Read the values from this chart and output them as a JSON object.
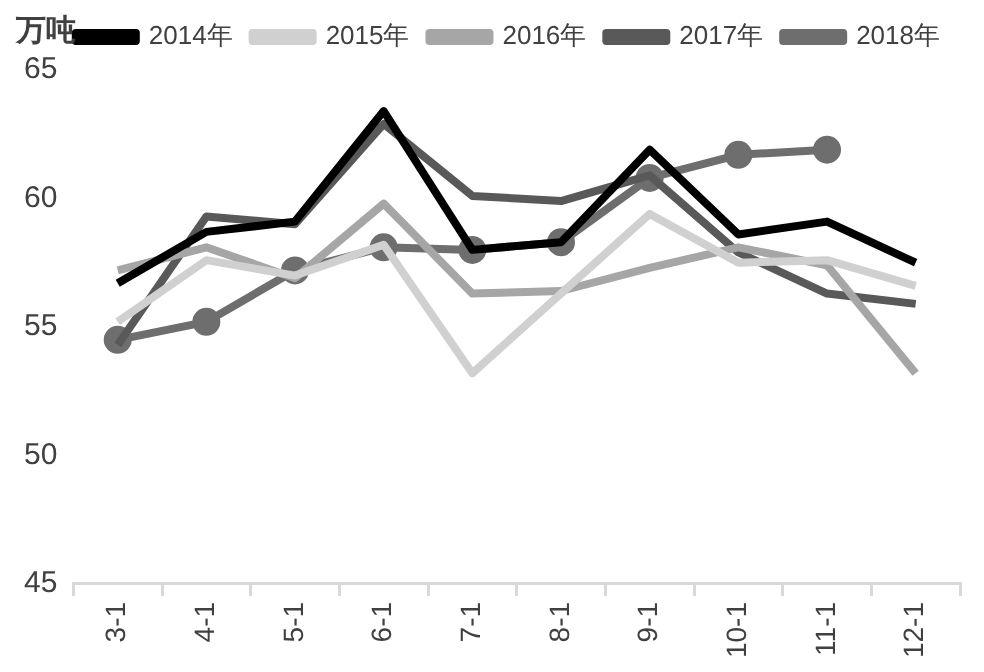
{
  "chart_data": {
    "type": "line",
    "ylabel": "万吨",
    "categories": [
      "3-1",
      "4-1",
      "5-1",
      "6-1",
      "7-1",
      "8-1",
      "9-1",
      "10-1",
      "11-1",
      "12-1"
    ],
    "series": [
      {
        "name": "2014年",
        "color": "#000000",
        "values": [
          56.7,
          58.7,
          59.1,
          63.4,
          58.0,
          58.3,
          61.9,
          58.6,
          59.1,
          57.5
        ]
      },
      {
        "name": "2015年",
        "color": "#d0d0d0",
        "values": [
          55.2,
          57.6,
          57.0,
          58.2,
          53.2,
          56.3,
          59.4,
          57.5,
          57.6,
          56.6
        ]
      },
      {
        "name": "2016年",
        "color": "#a6a6a6",
        "values": [
          57.2,
          58.1,
          56.9,
          59.8,
          56.3,
          56.4,
          57.3,
          58.1,
          57.4,
          53.2
        ]
      },
      {
        "name": "2017年",
        "color": "#595959",
        "values": [
          54.3,
          59.3,
          59.0,
          62.9,
          60.1,
          59.9,
          60.9,
          57.9,
          56.3,
          55.9
        ]
      },
      {
        "name": "2018年",
        "color": "#6e6e6e",
        "marker": "circle",
        "values": [
          54.5,
          55.2,
          57.2,
          58.1,
          58.0,
          58.3,
          60.8,
          61.7,
          61.9,
          null
        ]
      }
    ],
    "ylim": [
      45,
      65
    ],
    "yticks": [
      45,
      50,
      55,
      60,
      65
    ],
    "grid": false,
    "legend": "top"
  }
}
